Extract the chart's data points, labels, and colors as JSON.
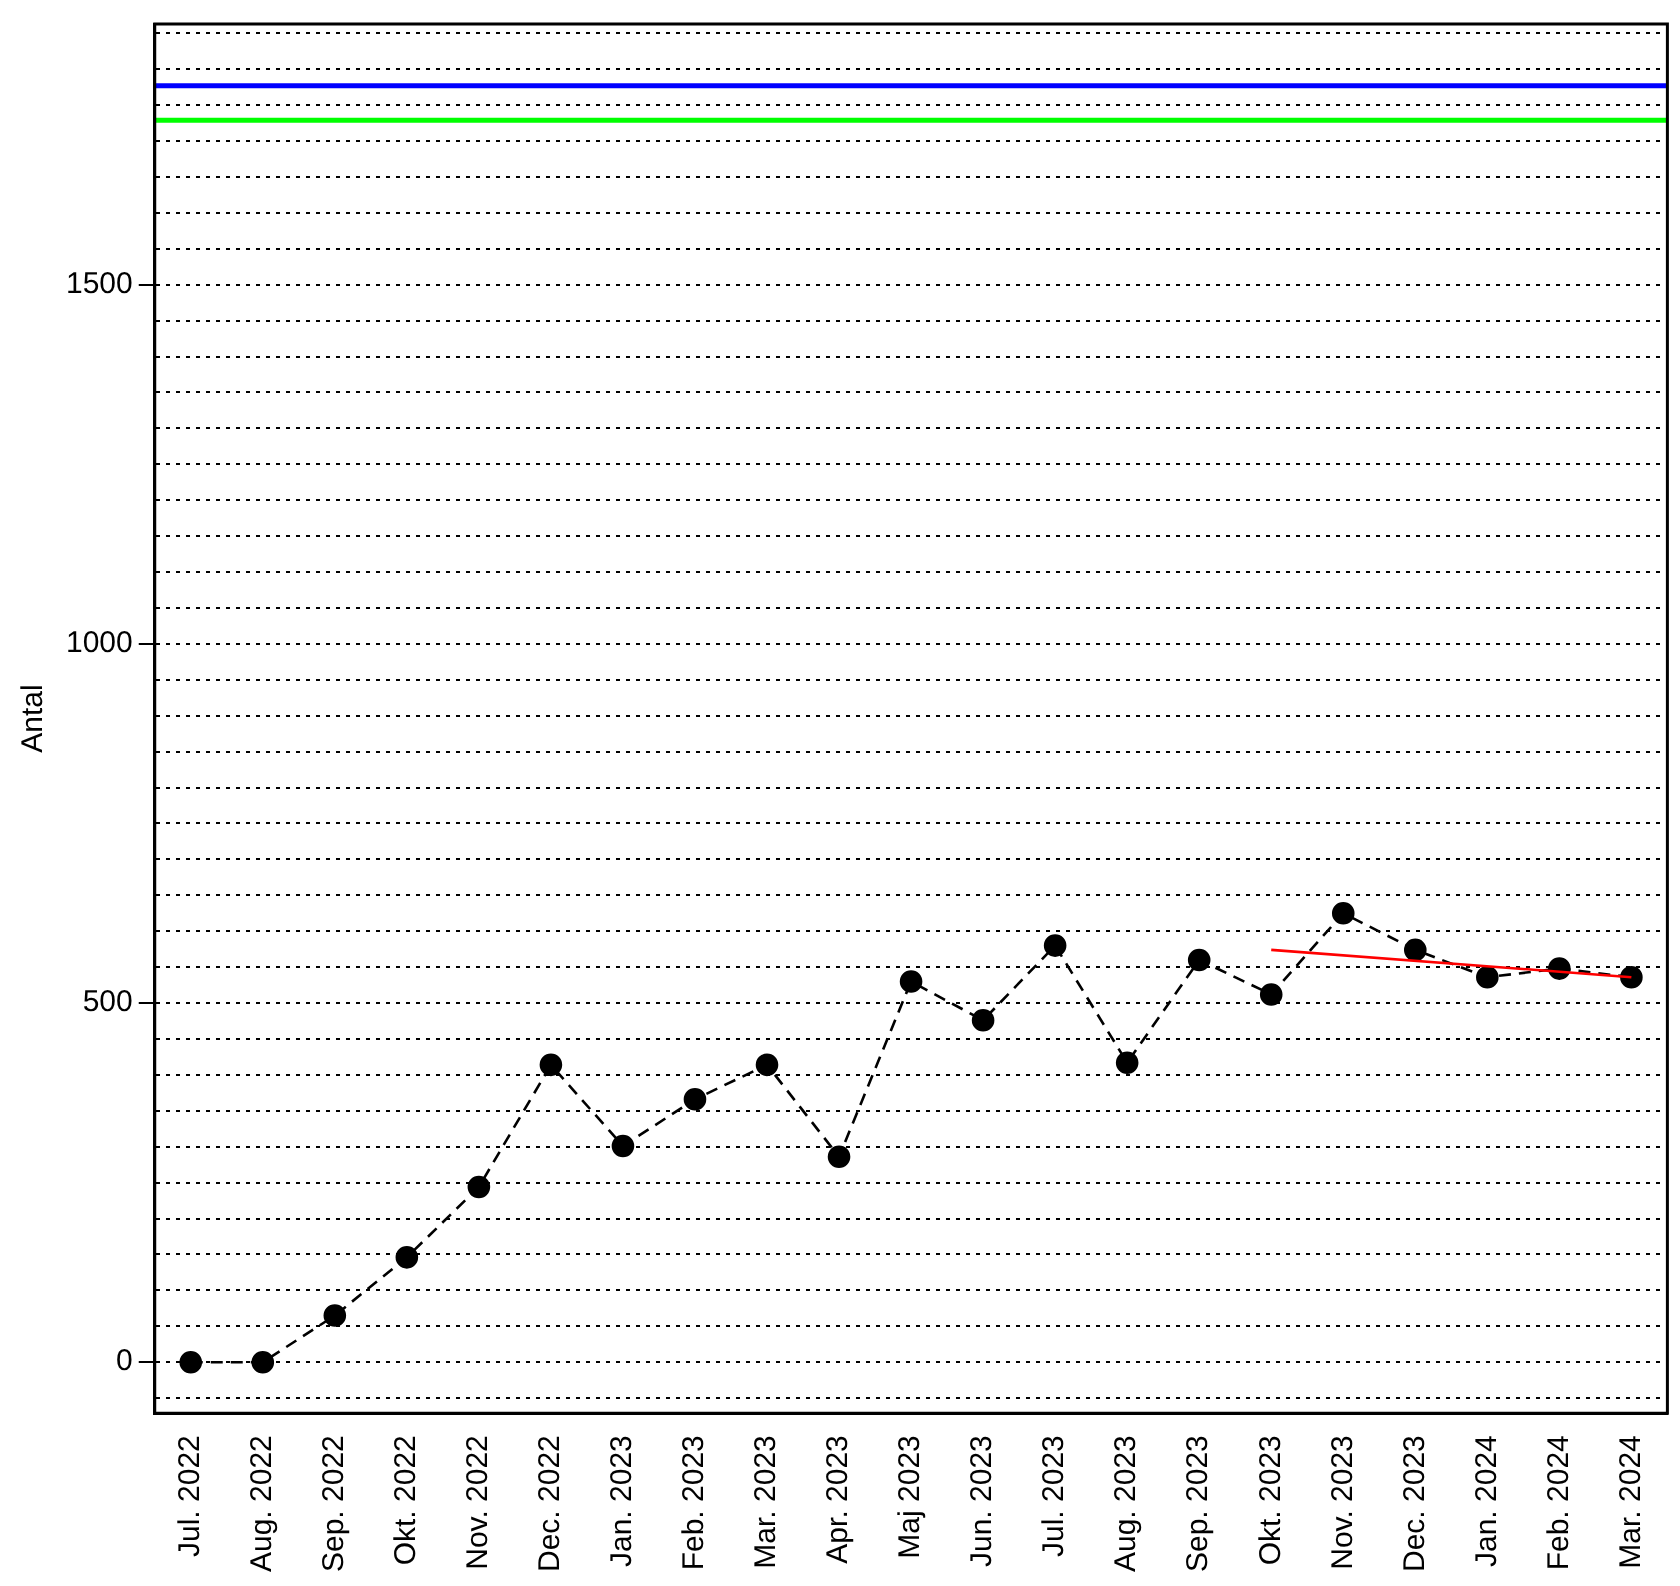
{
  "chart_data": {
    "type": "line",
    "ylabel": "Antal",
    "categories": [
      "Jul. 2022",
      "Aug. 2022",
      "Sep. 2022",
      "Okt. 2022",
      "Nov. 2022",
      "Dec. 2022",
      "Jan. 2023",
      "Feb. 2023",
      "Mar. 2023",
      "Apr. 2023",
      "Maj 2023",
      "Jun. 2023",
      "Jul. 2023",
      "Aug. 2023",
      "Sep. 2023",
      "Okt. 2023",
      "Nov. 2023",
      "Dec. 2023",
      "Jan. 2024",
      "Feb. 2024",
      "Mar. 2024"
    ],
    "series": [
      {
        "type": "line",
        "color": "#000000",
        "marker": "circle",
        "line_style": "dashed",
        "values": [
          0,
          0,
          65,
          146,
          244,
          414,
          301,
          366,
          414,
          286,
          530,
          476,
          580,
          417,
          560,
          512,
          625,
          574,
          536,
          548,
          536
        ]
      },
      {
        "type": "line",
        "color": "#ff0000",
        "marker": "none",
        "line_style": "solid",
        "x": [
          "Okt. 2023",
          "Mar. 2024"
        ],
        "values": [
          574,
          536
        ]
      }
    ],
    "ylim": [
      -71,
      1863
    ],
    "yticks": [
      {
        "value": -50,
        "label": null
      },
      0,
      {
        "value": 50,
        "label": null
      },
      {
        "value": 100,
        "label": null
      },
      {
        "value": 150,
        "label": null
      },
      {
        "value": 200,
        "label": null
      },
      {
        "value": 250,
        "label": null
      },
      {
        "value": 300,
        "label": null
      },
      {
        "value": 350,
        "label": null
      },
      {
        "value": 400,
        "label": null
      },
      {
        "value": 450,
        "label": null
      },
      500,
      {
        "value": 550,
        "label": null
      },
      {
        "value": 600,
        "label": null
      },
      {
        "value": 650,
        "label": null
      },
      {
        "value": 700,
        "label": null
      },
      {
        "value": 750,
        "label": null
      },
      {
        "value": 800,
        "label": null
      },
      {
        "value": 850,
        "label": null
      },
      {
        "value": 900,
        "label": null
      },
      {
        "value": 950,
        "label": null
      },
      1000,
      {
        "value": 1050,
        "label": null
      },
      {
        "value": 1100,
        "label": null
      },
      {
        "value": 1150,
        "label": null
      },
      {
        "value": 1200,
        "label": null
      },
      {
        "value": 1250,
        "label": null
      },
      {
        "value": 1300,
        "label": null
      },
      {
        "value": 1350,
        "label": null
      },
      {
        "value": 1400,
        "label": null
      },
      {
        "value": 1450,
        "label": null
      },
      1500,
      {
        "value": 1550,
        "label": null
      },
      {
        "value": 1600,
        "label": null
      },
      {
        "value": 1650,
        "label": null
      },
      {
        "value": 1700,
        "label": null
      },
      {
        "value": 1750,
        "label": null
      },
      {
        "value": 1800,
        "label": null
      },
      {
        "value": 1850,
        "label": null
      }
    ],
    "ref_lines": [
      {
        "axis": "y",
        "value": 1777,
        "color": "#0000ff"
      },
      {
        "axis": "y",
        "value": 1729,
        "color": "#00ff00"
      }
    ],
    "grid": "y",
    "legend": false
  }
}
